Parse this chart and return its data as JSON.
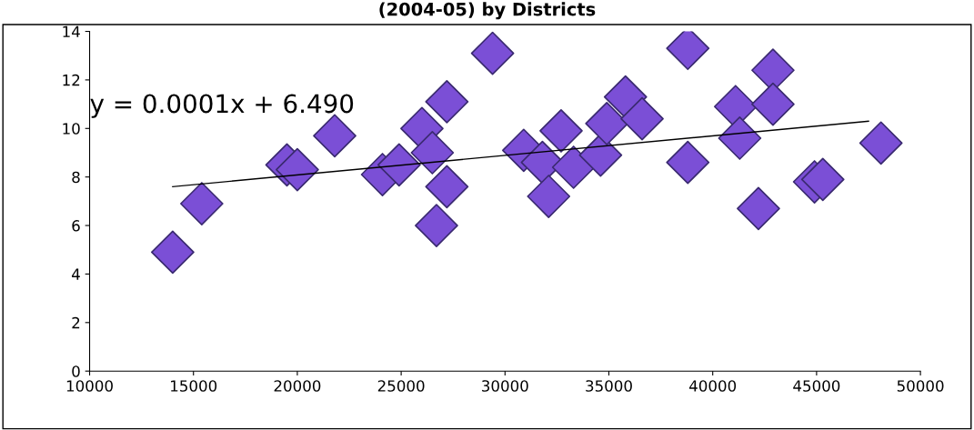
{
  "chart_data": {
    "type": "scatter",
    "title": "(2004-05) by Districts",
    "x": [
      14000,
      15400,
      19500,
      20000,
      21800,
      24100,
      24900,
      26000,
      26500,
      26700,
      27200,
      27200,
      29400,
      30900,
      31800,
      32100,
      32700,
      33300,
      34600,
      34900,
      35800,
      36600,
      38800,
      38800,
      41100,
      41300,
      42200,
      42900,
      42900,
      44900,
      45300,
      48100
    ],
    "series": [
      {
        "color": "#7b4fd6",
        "values": [
          4.9,
          6.9,
          8.5,
          8.3,
          9.7,
          8.1,
          8.5,
          10.0,
          9.0,
          6.0,
          11.1,
          7.6,
          13.1,
          9.1,
          8.6,
          7.2,
          9.9,
          8.4,
          8.9,
          10.2,
          11.3,
          10.4,
          13.3,
          8.6,
          10.9,
          9.6,
          6.7,
          12.4,
          11.0,
          7.8,
          7.9,
          9.4
        ]
      },
      {
        "type": "line",
        "marker": "none",
        "color": "#000000",
        "x": [
          14000,
          47500
        ],
        "values": [
          7.6,
          10.3
        ]
      }
    ],
    "annotations": [
      "y = 0.0001x + 6.490"
    ],
    "marker": "diamond",
    "grid": false,
    "legend": false,
    "xlim": [
      10000,
      50000
    ],
    "xticks": [
      10000,
      15000,
      20000,
      25000,
      30000,
      35000,
      40000,
      45000,
      50000
    ],
    "ylim": [
      0,
      14
    ],
    "yticks": [
      0,
      2,
      4,
      6,
      8,
      10,
      12,
      14
    ]
  }
}
